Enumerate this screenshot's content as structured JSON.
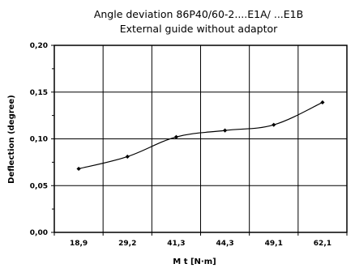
{
  "chart_data": {
    "type": "line",
    "title": "Angle deviation 86P40/60-2....E1A/ ...E1B",
    "subtitle": "External guide without adaptor",
    "xlabel": "M t [N·m]",
    "ylabel": "Deflection (degree)",
    "x": [
      "18,9",
      "29,2",
      "41,3",
      "44,3",
      "49,1",
      "62,1"
    ],
    "series": [
      {
        "values": [
          0.068,
          0.081,
          0.102,
          0.109,
          0.115,
          0.139
        ]
      }
    ],
    "y_ticks": [
      "0,00",
      "0,05",
      "0,10",
      "0,15",
      "0,20"
    ],
    "ylim": [
      0,
      0.2
    ],
    "grid": true,
    "marker": "diamond",
    "line_color": "#000000"
  }
}
